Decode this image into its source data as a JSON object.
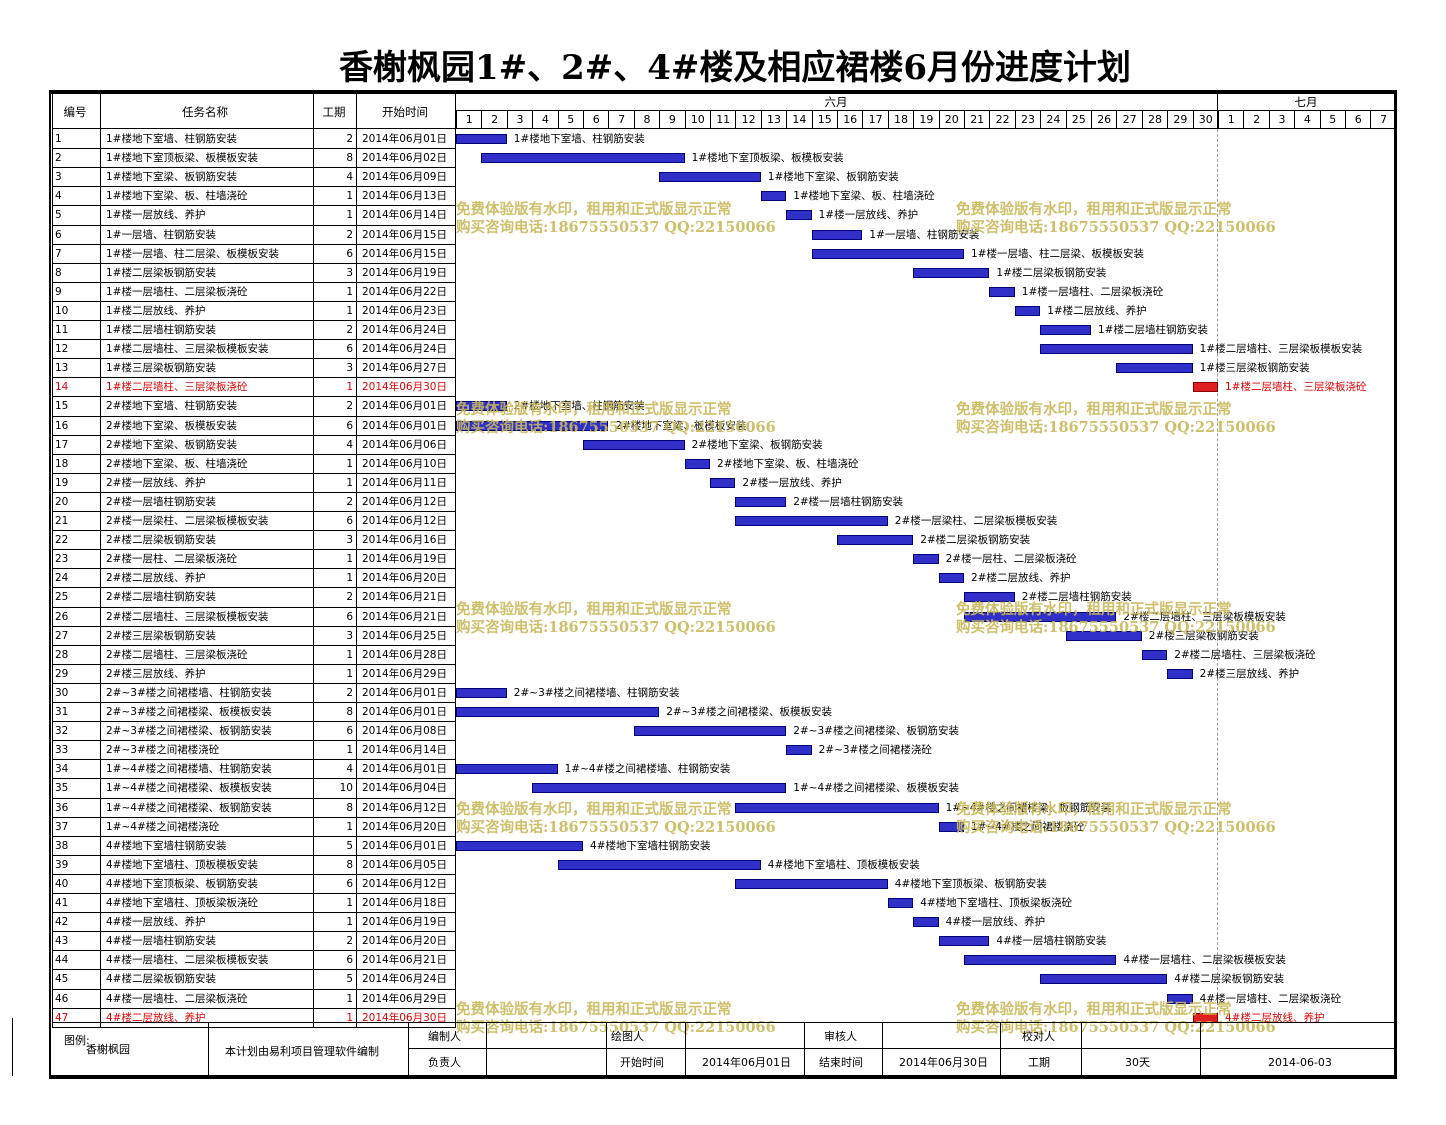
{
  "title": "香榭枫园1#、2#、4#楼及相应裙楼6月份进度计划",
  "headers": {
    "id": "编号",
    "name": "任务名称",
    "duration": "工期",
    "start": "开始时间"
  },
  "months": [
    {
      "label": "六月"
    },
    {
      "label": "七月"
    }
  ],
  "june_days": [
    "1",
    "2",
    "3",
    "4",
    "5",
    "6",
    "7",
    "8",
    "9",
    "10",
    "11",
    "12",
    "13",
    "14",
    "15",
    "16",
    "17",
    "18",
    "19",
    "20",
    "21",
    "22",
    "23",
    "24",
    "25",
    "26",
    "27",
    "28",
    "29",
    "30"
  ],
  "july_days": [
    "1",
    "2",
    "3",
    "4",
    "5",
    "6",
    "7"
  ],
  "colors": {
    "bar": "#3030c8",
    "critical": "#e02020",
    "watermark": "#c9b95a"
  },
  "tasks": [
    {
      "id": "1",
      "name": "1#楼地下室墙、柱钢筋安装",
      "dur": "2",
      "start": "2014年06月01日",
      "d": 1
    },
    {
      "id": "2",
      "name": "1#楼地下室顶板梁、板模板安装",
      "dur": "8",
      "start": "2014年06月02日",
      "d": 2
    },
    {
      "id": "3",
      "name": "1#楼地下室梁、板钢筋安装",
      "dur": "4",
      "start": "2014年06月09日",
      "d": 9
    },
    {
      "id": "4",
      "name": "1#楼地下室梁、板、柱墙浇砼",
      "dur": "1",
      "start": "2014年06月13日",
      "d": 13
    },
    {
      "id": "5",
      "name": "1#楼一层放线、养护",
      "dur": "1",
      "start": "2014年06月14日",
      "d": 14
    },
    {
      "id": "6",
      "name": "1#一层墙、柱钢筋安装",
      "dur": "2",
      "start": "2014年06月15日",
      "d": 15
    },
    {
      "id": "7",
      "name": "1#楼一层墙、柱二层梁、板模板安装",
      "dur": "6",
      "start": "2014年06月15日",
      "d": 15
    },
    {
      "id": "8",
      "name": "1#楼二层梁板钢筋安装",
      "dur": "3",
      "start": "2014年06月19日",
      "d": 19
    },
    {
      "id": "9",
      "name": "1#楼一层墙柱、二层梁板浇砼",
      "dur": "1",
      "start": "2014年06月22日",
      "d": 22
    },
    {
      "id": "10",
      "name": "1#楼二层放线、养护",
      "dur": "1",
      "start": "2014年06月23日",
      "d": 23
    },
    {
      "id": "11",
      "name": "1#楼二层墙柱钢筋安装",
      "dur": "2",
      "start": "2014年06月24日",
      "d": 24
    },
    {
      "id": "12",
      "name": "1#楼二层墙柱、三层梁板模板安装",
      "dur": "6",
      "start": "2014年06月24日",
      "d": 24
    },
    {
      "id": "13",
      "name": "1#楼三层梁板钢筋安装",
      "dur": "3",
      "start": "2014年06月27日",
      "d": 27
    },
    {
      "id": "14",
      "name": "1#楼二层墙柱、三层梁板浇砼",
      "dur": "1",
      "start": "2014年06月30日",
      "d": 30,
      "crit": true
    },
    {
      "id": "15",
      "name": "2#楼地下室墙、柱钢筋安装",
      "dur": "2",
      "start": "2014年06月01日",
      "d": 1
    },
    {
      "id": "16",
      "name": "2#楼地下室梁、板模板安装",
      "dur": "6",
      "start": "2014年06月01日",
      "d": 1
    },
    {
      "id": "17",
      "name": "2#楼地下室梁、板钢筋安装",
      "dur": "4",
      "start": "2014年06月06日",
      "d": 6
    },
    {
      "id": "18",
      "name": "2#楼地下室梁、板、柱墙浇砼",
      "dur": "1",
      "start": "2014年06月10日",
      "d": 10
    },
    {
      "id": "19",
      "name": "2#楼一层放线、养护",
      "dur": "1",
      "start": "2014年06月11日",
      "d": 11
    },
    {
      "id": "20",
      "name": "2#楼一层墙柱钢筋安装",
      "dur": "2",
      "start": "2014年06月12日",
      "d": 12
    },
    {
      "id": "21",
      "name": "2#楼一层梁柱、二层梁板模板安装",
      "dur": "6",
      "start": "2014年06月12日",
      "d": 12
    },
    {
      "id": "22",
      "name": "2#楼二层梁板钢筋安装",
      "dur": "3",
      "start": "2014年06月16日",
      "d": 16
    },
    {
      "id": "23",
      "name": "2#楼一层柱、二层梁板浇砼",
      "dur": "1",
      "start": "2014年06月19日",
      "d": 19
    },
    {
      "id": "24",
      "name": "2#楼二层放线、养护",
      "dur": "1",
      "start": "2014年06月20日",
      "d": 20
    },
    {
      "id": "25",
      "name": "2#楼二层墙柱钢筋安装",
      "dur": "2",
      "start": "2014年06月21日",
      "d": 21
    },
    {
      "id": "26",
      "name": "2#楼二层墙柱、三层梁板模板安装",
      "dur": "6",
      "start": "2014年06月21日",
      "d": 21
    },
    {
      "id": "27",
      "name": "2#楼三层梁板钢筋安装",
      "dur": "3",
      "start": "2014年06月25日",
      "d": 25
    },
    {
      "id": "28",
      "name": "2#楼二层墙柱、三层梁板浇砼",
      "dur": "1",
      "start": "2014年06月28日",
      "d": 28
    },
    {
      "id": "29",
      "name": "2#楼三层放线、养护",
      "dur": "1",
      "start": "2014年06月29日",
      "d": 29
    },
    {
      "id": "30",
      "name": "2#~3#楼之间裙楼墙、柱钢筋安装",
      "dur": "2",
      "start": "2014年06月01日",
      "d": 1
    },
    {
      "id": "31",
      "name": "2#~3#楼之间裙楼梁、板模板安装",
      "dur": "8",
      "start": "2014年06月01日",
      "d": 1
    },
    {
      "id": "32",
      "name": "2#~3#楼之间裙楼梁、板钢筋安装",
      "dur": "6",
      "start": "2014年06月08日",
      "d": 8
    },
    {
      "id": "33",
      "name": "2#~3#楼之间裙楼浇砼",
      "dur": "1",
      "start": "2014年06月14日",
      "d": 14
    },
    {
      "id": "34",
      "name": "1#~4#楼之间裙楼墙、柱钢筋安装",
      "dur": "4",
      "start": "2014年06月01日",
      "d": 1
    },
    {
      "id": "35",
      "name": "1#~4#楼之间裙楼梁、板模板安装",
      "dur": "10",
      "start": "2014年06月04日",
      "d": 4
    },
    {
      "id": "36",
      "name": "1#~4#楼之间裙楼梁、板钢筋安装",
      "dur": "8",
      "start": "2014年06月12日",
      "d": 12
    },
    {
      "id": "37",
      "name": "1#~4#楼之间裙楼浇砼",
      "dur": "1",
      "start": "2014年06月20日",
      "d": 20
    },
    {
      "id": "38",
      "name": "4#楼地下室墙柱钢筋安装",
      "dur": "5",
      "start": "2014年06月01日",
      "d": 1
    },
    {
      "id": "39",
      "name": "4#楼地下室墙柱、顶板模板安装",
      "dur": "8",
      "start": "2014年06月05日",
      "d": 5
    },
    {
      "id": "40",
      "name": "4#楼地下室顶板梁、板钢筋安装",
      "dur": "6",
      "start": "2014年06月12日",
      "d": 12
    },
    {
      "id": "41",
      "name": "4#楼地下室墙柱、顶板梁板浇砼",
      "dur": "1",
      "start": "2014年06月18日",
      "d": 18
    },
    {
      "id": "42",
      "name": "4#楼一层放线、养护",
      "dur": "1",
      "start": "2014年06月19日",
      "d": 19
    },
    {
      "id": "43",
      "name": "4#楼一层墙柱钢筋安装",
      "dur": "2",
      "start": "2014年06月20日",
      "d": 20
    },
    {
      "id": "44",
      "name": "4#楼一层墙柱、二层梁板模板安装",
      "dur": "6",
      "start": "2014年06月21日",
      "d": 21
    },
    {
      "id": "45",
      "name": "4#楼二层梁板钢筋安装",
      "dur": "5",
      "start": "2014年06月24日",
      "d": 24
    },
    {
      "id": "46",
      "name": "4#楼一层墙柱、二层梁板浇砼",
      "dur": "1",
      "start": "2014年06月29日",
      "d": 29
    },
    {
      "id": "47",
      "name": "4#楼二层放线、养护",
      "dur": "1",
      "start": "2014年06月30日",
      "d": 30,
      "crit": true
    }
  ],
  "watermark": {
    "line1": "免费体验版有水印，租用和正式版显示正常",
    "line2": "购买咨询电话:18675550537 QQ:22150066"
  },
  "footer": {
    "legend_label": "图例:",
    "project": "香榭枫园",
    "software_note": "本计划由易利项目管理软件编制",
    "compiler_label": "编制人",
    "drawer_label": "绘图人",
    "reviewer_label": "审核人",
    "checker_label": "校对人",
    "responsible_label": "负责人",
    "start_label": "开始时间",
    "start_value": "2014年06月01日",
    "end_label": "结束时间",
    "end_value": "2014年06月30日",
    "duration_label": "工期",
    "duration_value": "30天",
    "date": "2014-06-03"
  }
}
